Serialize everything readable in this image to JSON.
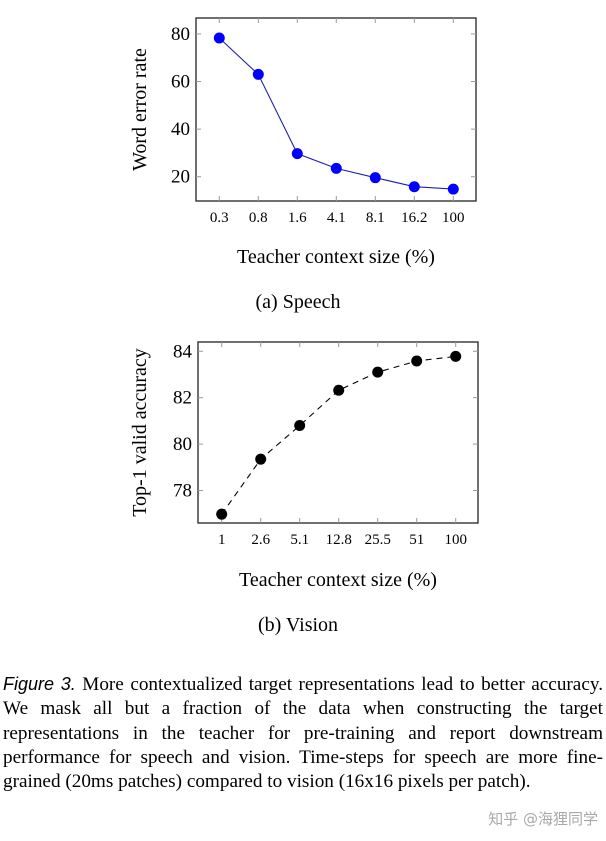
{
  "chart_data": [
    {
      "type": "line",
      "subtitle": "(a) Speech",
      "xlabel": "Teacher context size (%)",
      "ylabel": "Word error rate",
      "categories": [
        "0.3",
        "0.8",
        "1.6",
        "4.1",
        "8.1",
        "16.2",
        "100"
      ],
      "series": [
        {
          "values": [
            78.3,
            63.0,
            29.7,
            23.5,
            19.6,
            15.8,
            14.8
          ],
          "color": "#0000ff",
          "line_style": "solid",
          "marker": "circle"
        }
      ],
      "yticks": [
        20,
        40,
        60,
        80
      ],
      "ylim": [
        9.8,
        86.7
      ],
      "grid": false
    },
    {
      "type": "line",
      "subtitle": "(b) Vision",
      "xlabel": "Teacher context size (%)",
      "ylabel": "Top-1 valid accuracy",
      "categories": [
        "1",
        "2.6",
        "5.1",
        "12.8",
        "25.5",
        "51",
        "100"
      ],
      "series": [
        {
          "values": [
            76.98,
            79.35,
            80.8,
            82.32,
            83.1,
            83.58,
            83.78
          ],
          "color": "#000000",
          "line_style": "dashed",
          "marker": "circle"
        }
      ],
      "yticks": [
        78,
        80,
        82,
        84
      ],
      "ylim": [
        76.6,
        84.4
      ],
      "grid": false
    }
  ],
  "caption": {
    "label": "Figure 3.",
    "text": " More contextualized target representations lead to better accuracy. We mask all but a fraction of the data when constructing the target representations in the teacher for pre-training and report downstream performance for speech and vision. Time-steps for speech are more fine-grained (20ms patches) compared to vision (16x16 pixels per patch)."
  },
  "watermark": "知乎 @海狸同学"
}
